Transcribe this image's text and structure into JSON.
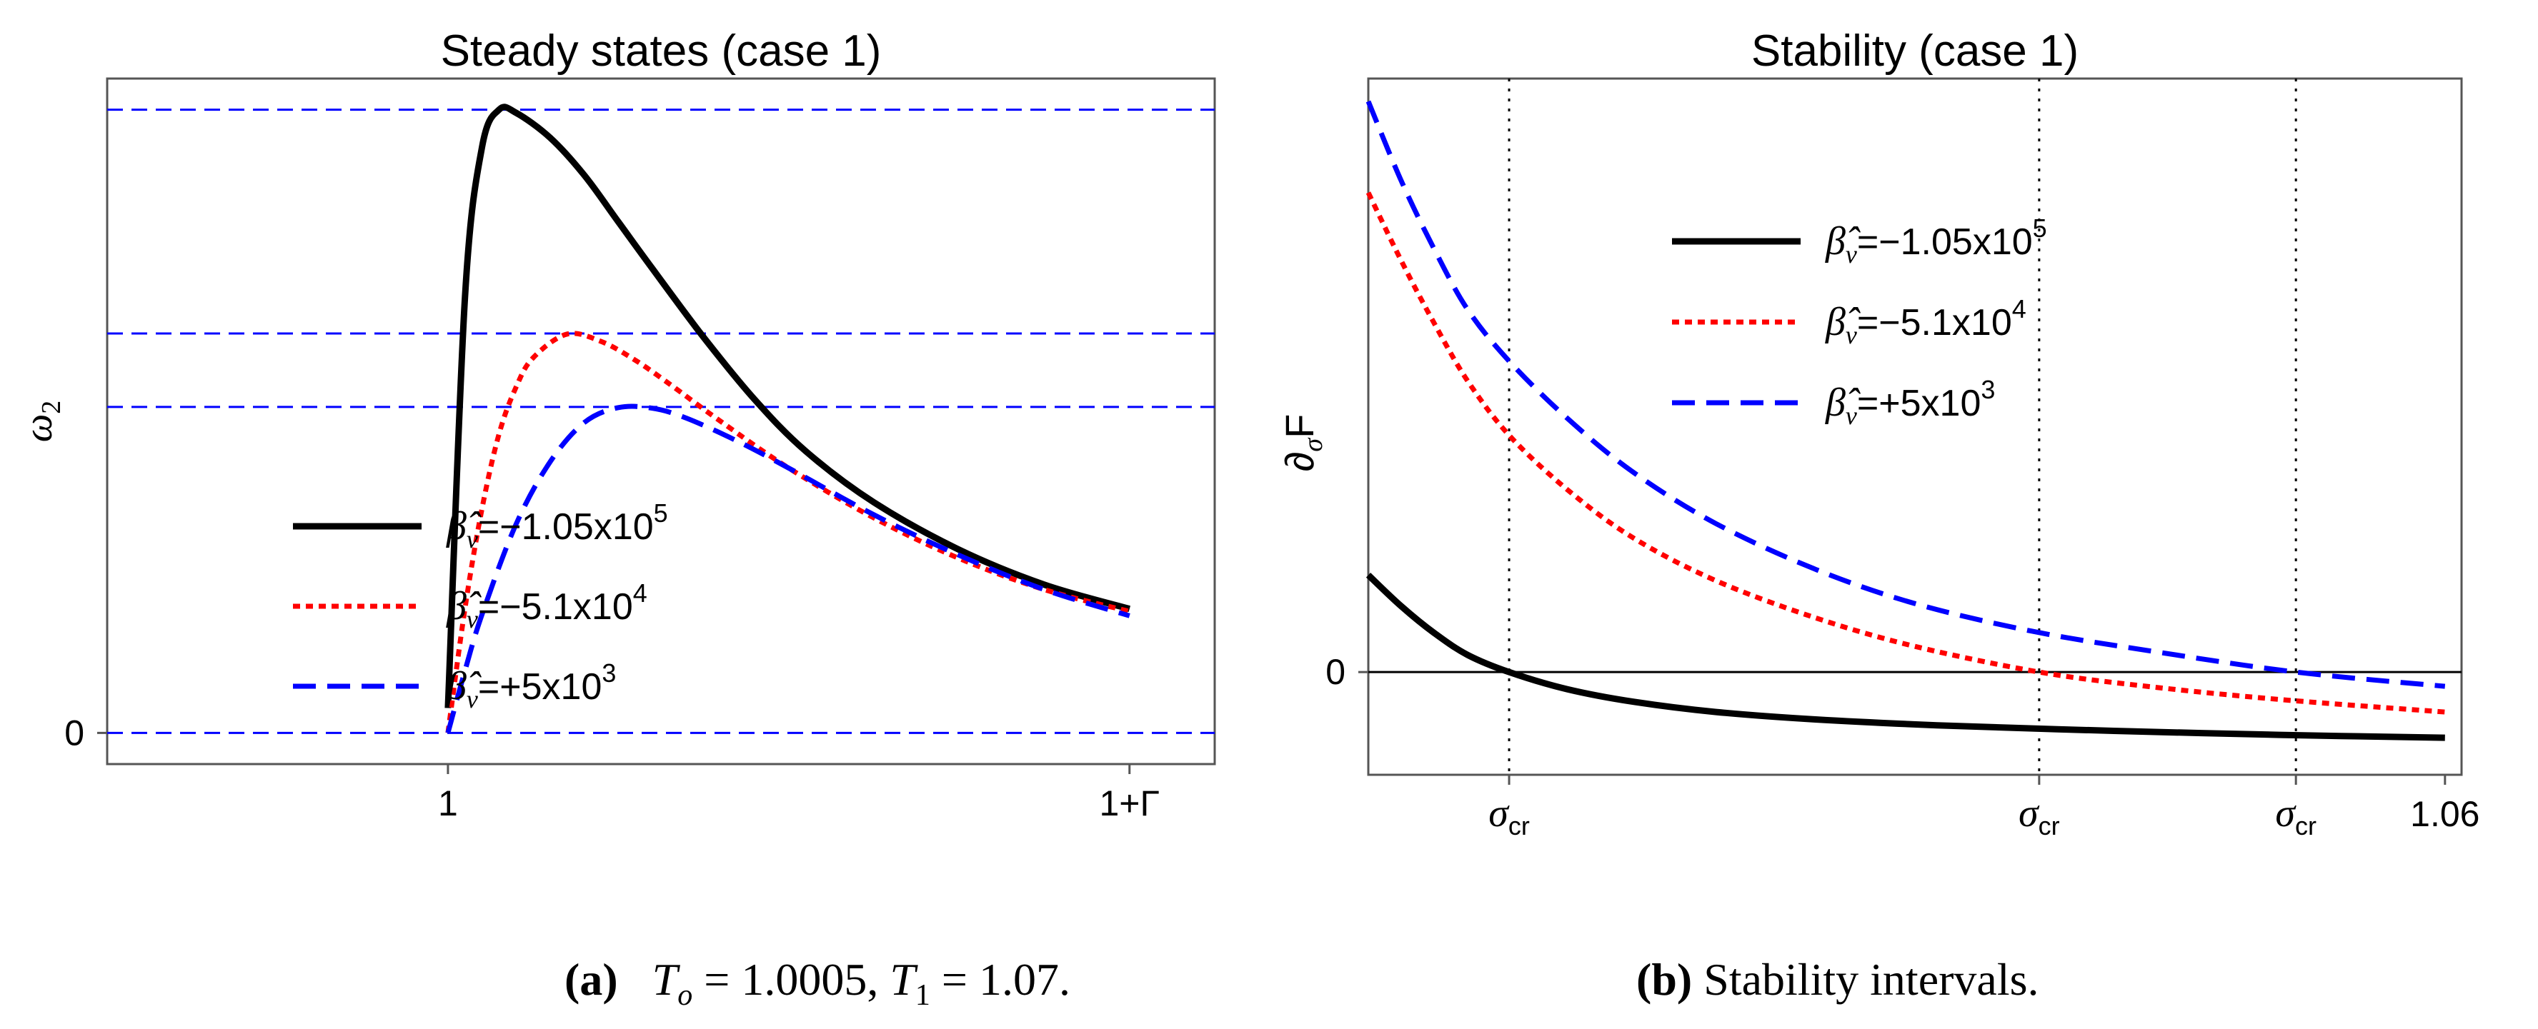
{
  "chart_data": [
    {
      "type": "line",
      "title": "Steady states (case 1)",
      "xlabel": "",
      "ylabel": "ω2",
      "xlim": [
        0.98,
        1.045
      ],
      "ylim": [
        -0.05,
        1.05
      ],
      "x_ticks": [
        {
          "value": 1.0,
          "label": "1"
        },
        {
          "value": 1.04,
          "label": "1+Γ"
        }
      ],
      "y_ticks": [
        {
          "value": 0.0,
          "label": "0"
        }
      ],
      "hlines": [
        0.0,
        0.523,
        0.641,
        1.0
      ],
      "legend_position": "center",
      "series": [
        {
          "name": "β̂v=−1.05x105",
          "legend_hat": "β̂",
          "legend_sub": "v",
          "legend_text": "=−1.05x10",
          "legend_sup": "5",
          "color": "#000000",
          "style": "solid",
          "x": [
            1.0,
            1.001,
            1.002,
            1.003,
            1.004,
            1.006,
            1.008,
            1.01,
            1.012,
            1.015,
            1.018,
            1.021,
            1.025,
            1.03,
            1.035,
            1.04
          ],
          "y": [
            0.04,
            0.7,
            0.94,
            1.0,
            0.995,
            0.955,
            0.895,
            0.82,
            0.745,
            0.635,
            0.535,
            0.452,
            0.37,
            0.294,
            0.238,
            0.199
          ]
        },
        {
          "name": "β̂v=−5.1x104",
          "legend_hat": "β̂",
          "legend_sub": "v",
          "legend_text": "=−5.1x10",
          "legend_sup": "4",
          "color": "#ff0000",
          "style": "dotted",
          "x": [
            1.0,
            1.001,
            1.002,
            1.003,
            1.004,
            1.005,
            1.007,
            1.009,
            1.011,
            1.013,
            1.016,
            1.02,
            1.025,
            1.03,
            1.035,
            1.04
          ],
          "y": [
            0.0,
            0.2,
            0.36,
            0.48,
            0.555,
            0.602,
            0.64,
            0.628,
            0.598,
            0.56,
            0.5,
            0.425,
            0.345,
            0.28,
            0.23,
            0.195
          ]
        },
        {
          "name": "β̂v=+5x103",
          "legend_hat": "β̂",
          "legend_sub": "v",
          "legend_text": "=+5x10",
          "legend_sup": "3",
          "color": "#0000ff",
          "style": "dashed",
          "x": [
            1.0,
            1.001,
            1.002,
            1.004,
            1.006,
            1.008,
            1.01,
            1.012,
            1.014,
            1.017,
            1.02,
            1.025,
            1.03,
            1.035,
            1.04
          ],
          "y": [
            0.0,
            0.1,
            0.19,
            0.335,
            0.435,
            0.498,
            0.522,
            0.521,
            0.505,
            0.468,
            0.425,
            0.35,
            0.285,
            0.23,
            0.188
          ]
        }
      ]
    },
    {
      "type": "line",
      "title": "Stability (case 1)",
      "xlabel": "",
      "ylabel": "∂σF",
      "xlim": [
        0.995,
        1.061
      ],
      "ylim": [
        -0.18,
        1.04
      ],
      "x_ticks": [
        {
          "value": 1.0035,
          "label": "σcr",
          "sub": true
        },
        {
          "value": 1.0355,
          "label": "σcr",
          "sub": true
        },
        {
          "value": 1.051,
          "label": "σcr",
          "sub": true
        },
        {
          "value": 1.06,
          "label": "1.06"
        }
      ],
      "y_ticks": [
        {
          "value": 0.0,
          "label": "0"
        }
      ],
      "vlines": [
        1.0035,
        1.0355,
        1.051
      ],
      "hlines": [
        0.0
      ],
      "legend_position": "top-right",
      "series": [
        {
          "name": "β̂v=−1.05x105",
          "legend_hat": "β̂",
          "legend_sub": "v",
          "legend_text": "=−1.05x10",
          "legend_sup": "5",
          "color": "#000000",
          "style": "solid",
          "x": [
            0.995,
            0.997,
            0.999,
            1.001,
            1.0035,
            1.007,
            1.011,
            1.016,
            1.022,
            1.03,
            1.04,
            1.05,
            1.06
          ],
          "y": [
            0.17,
            0.115,
            0.068,
            0.03,
            0.0,
            -0.03,
            -0.052,
            -0.07,
            -0.083,
            -0.094,
            -0.103,
            -0.11,
            -0.115
          ]
        },
        {
          "name": "β̂v=−5.1x104",
          "legend_hat": "β̂",
          "legend_sub": "v",
          "legend_text": "=−5.1x10",
          "legend_sup": "4",
          "color": "#ff0000",
          "style": "dotted",
          "x": [
            0.995,
            0.997,
            0.999,
            1.001,
            1.0035,
            1.007,
            1.011,
            1.016,
            1.022,
            1.028,
            1.0355,
            1.042,
            1.05,
            1.06
          ],
          "y": [
            0.84,
            0.72,
            0.61,
            0.51,
            0.415,
            0.32,
            0.235,
            0.16,
            0.095,
            0.045,
            0.0,
            -0.025,
            -0.048,
            -0.07
          ]
        },
        {
          "name": "β̂v=+5x103",
          "legend_hat": "β̂",
          "legend_sub": "v",
          "legend_text": "=+5x10",
          "legend_sup": "3",
          "color": "#0000ff",
          "style": "dashed",
          "x": [
            0.995,
            0.997,
            0.999,
            1.001,
            1.0035,
            1.007,
            1.011,
            1.016,
            1.022,
            1.028,
            1.035,
            1.042,
            1.051,
            1.06
          ],
          "y": [
            1.0,
            0.86,
            0.74,
            0.635,
            0.545,
            0.445,
            0.35,
            0.26,
            0.18,
            0.12,
            0.072,
            0.038,
            0.0,
            -0.025
          ]
        }
      ]
    }
  ],
  "captions": {
    "a": {
      "label": "(a)",
      "t0_sym": "T",
      "t0_sub": "o",
      "t0_val": " = 1.0005, ",
      "t1_sym": "T",
      "t1_sub": "1",
      "t1_val": " = 1.07."
    },
    "b": {
      "label": "(b)",
      "text": " Stability intervals."
    }
  }
}
